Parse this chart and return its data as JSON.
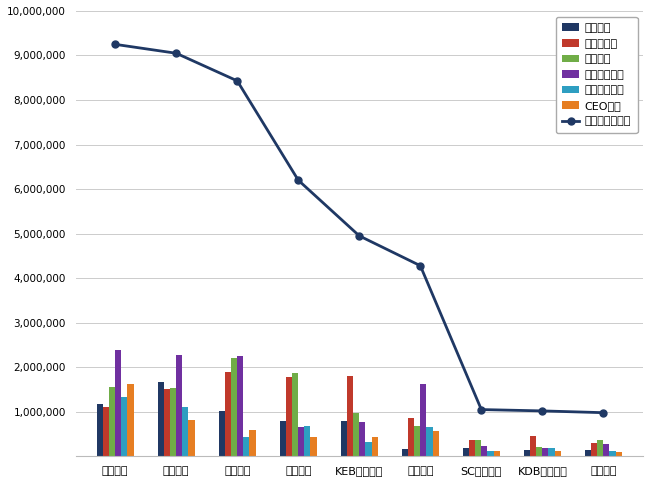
{
  "banks": [
    "우리은행",
    "국민은행",
    "신한은행",
    "기업은행",
    "KEB하나은행",
    "농협은행",
    "SC제일은행",
    "KDB산업은행",
    "씨티은행"
  ],
  "brand_score": [
    9250000,
    9050000,
    8430000,
    6200000,
    4950000,
    4280000,
    1050000,
    1020000,
    980000
  ],
  "series_names": [
    "참여지수",
    "미디어지수",
    "소통지수",
    "커뮤니티지수",
    "사회공헌지수",
    "CEO지수"
  ],
  "series": {
    "참여지수": [
      1180000,
      1680000,
      1010000,
      790000,
      790000,
      160000,
      180000,
      140000,
      150000
    ],
    "미디어지수": [
      1110000,
      1510000,
      1900000,
      1790000,
      1810000,
      870000,
      360000,
      460000,
      290000
    ],
    "소통지수": [
      1560000,
      1530000,
      2200000,
      1880000,
      980000,
      690000,
      370000,
      200000,
      360000
    ],
    "커뮤니티지수": [
      2380000,
      2280000,
      2250000,
      660000,
      770000,
      1630000,
      230000,
      180000,
      280000
    ],
    "사회공헌지수": [
      1340000,
      1110000,
      440000,
      680000,
      320000,
      660000,
      120000,
      190000,
      110000
    ],
    "CEO지수": [
      1620000,
      820000,
      600000,
      430000,
      430000,
      580000,
      120000,
      120000,
      100000
    ]
  },
  "series_colors": {
    "참여지수": "#203864",
    "미디어지수": "#C0392B",
    "소통지수": "#70AD47",
    "커뮤니티지수": "#7030A0",
    "사회공헌지수": "#2E9EC1",
    "CEO지수": "#E67E22"
  },
  "line_color": "#1F3864",
  "line_label": "브랜드평판지수",
  "ylim": [
    0,
    10000000
  ],
  "yticks": [
    0,
    1000000,
    2000000,
    3000000,
    4000000,
    5000000,
    6000000,
    7000000,
    8000000,
    9000000,
    10000000
  ],
  "background_color": "#FFFFFF",
  "grid_color": "#CCCCCC",
  "bar_width": 0.1,
  "figsize": [
    6.5,
    4.83
  ],
  "dpi": 100
}
